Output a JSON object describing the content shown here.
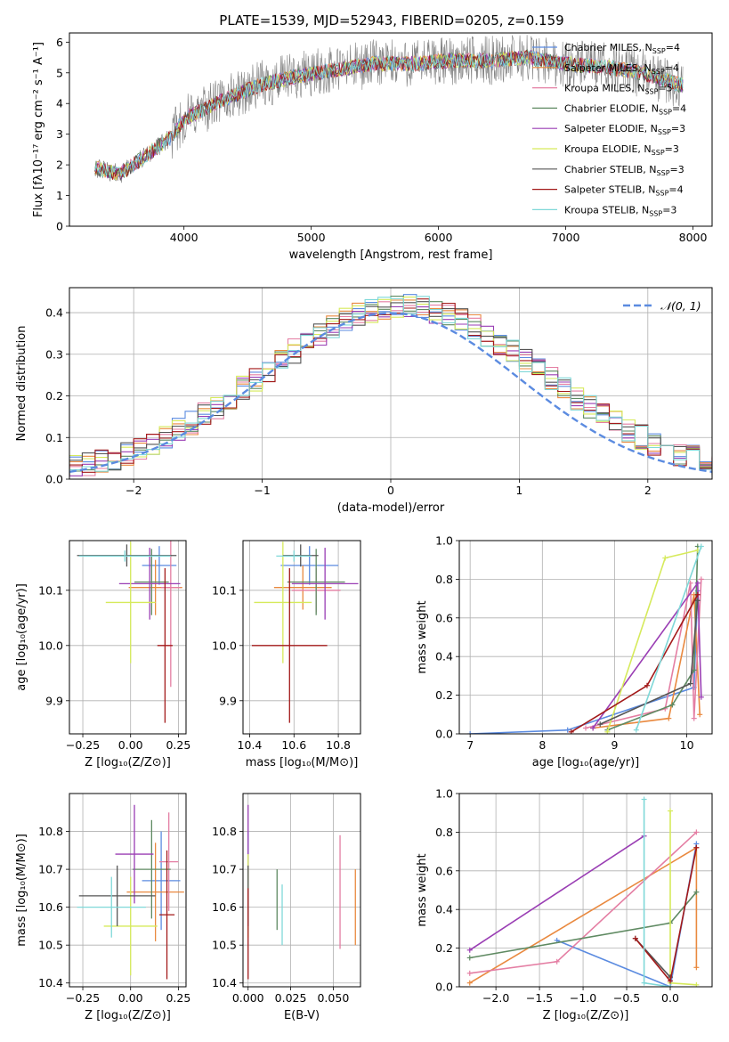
{
  "figure": {
    "title": "PLATE=1539, MJD=52943, FIBERID=0205, z=0.159"
  },
  "colors": {
    "Chabrier MILES": "#5b8be0",
    "Salpeter MILES": "#e9893f",
    "Kroupa MILES": "#e47ea3",
    "Chabrier ELODIE": "#5f8a62",
    "Salpeter ELODIE": "#9a3eb4",
    "Kroupa ELODIE": "#d6ea5b",
    "Chabrier STELIB": "#555555",
    "Salpeter STELIB": "#a31a1a",
    "Kroupa STELIB": "#7fd8d8",
    "data": "#808080",
    "normal": "#5b8be0"
  },
  "chart_data": [
    {
      "id": "spectrum",
      "type": "line",
      "xlabel": "wavelength [Angstrom, rest frame]",
      "ylabel": "Flux [fλ10⁻¹⁷ erg cm⁻² s⁻¹ A⁻¹]",
      "xlim": [
        3100,
        8150
      ],
      "ylim": [
        0,
        6.3
      ],
      "xticks": [
        4000,
        5000,
        6000,
        7000,
        8000
      ],
      "yticks": [
        0,
        1,
        2,
        3,
        4,
        5,
        6
      ],
      "continuum": {
        "x": [
          3300,
          3500,
          3700,
          3900,
          4000,
          4300,
          4600,
          4900,
          5200,
          5500,
          5800,
          6100,
          6400,
          6700,
          7000,
          7300,
          7600,
          7900
        ],
        "y": [
          1.9,
          1.7,
          2.3,
          2.9,
          3.5,
          4.1,
          4.6,
          4.9,
          5.1,
          5.3,
          5.3,
          5.4,
          5.4,
          5.5,
          5.3,
          5.2,
          5.0,
          4.6
        ]
      },
      "legend": [
        {
          "label": "Chabrier MILES, N",
          "sub": "SSP",
          "suffix": "=4"
        },
        {
          "label": "Salpeter MILES, N",
          "sub": "SSP",
          "suffix": "=4"
        },
        {
          "label": "Kroupa MILES, N",
          "sub": "SSP",
          "suffix": "=5"
        },
        {
          "label": "Chabrier ELODIE, N",
          "sub": "SSP",
          "suffix": "=4"
        },
        {
          "label": "Salpeter ELODIE, N",
          "sub": "SSP",
          "suffix": "=3"
        },
        {
          "label": "Kroupa ELODIE, N",
          "sub": "SSP",
          "suffix": "=3"
        },
        {
          "label": "Chabrier STELIB, N",
          "sub": "SSP",
          "suffix": "=3"
        },
        {
          "label": "Salpeter STELIB, N",
          "sub": "SSP",
          "suffix": "=4"
        },
        {
          "label": "Kroupa STELIB, N",
          "sub": "SSP",
          "suffix": "=3"
        }
      ],
      "legend_loc": "right"
    },
    {
      "id": "residuals",
      "type": "line",
      "xlabel": "(data-model)/error",
      "ylabel": "Normed distribution",
      "xlim": [
        -2.5,
        2.5
      ],
      "ylim": [
        0,
        0.46
      ],
      "xticks": [
        -2,
        -1,
        0,
        1,
        2
      ],
      "yticks": [
        0.0,
        0.1,
        0.2,
        0.3,
        0.4
      ],
      "normal_label": "𝒩(0, 1)",
      "legend_loc": "upper right"
    },
    {
      "id": "age_vs_Z",
      "type": "scatter",
      "xlabel": "Z [log₁₀(Z/Z⊙)]",
      "ylabel": "age  [log₁₀(age/yr)]",
      "xlim": [
        -0.32,
        0.29
      ],
      "ylim": [
        9.84,
        10.19
      ],
      "xticks": [
        -0.25,
        0.0,
        0.25
      ],
      "yticks": [
        9.9,
        10.0,
        10.1
      ],
      "points": [
        {
          "model": "Chabrier MILES",
          "x": 0.15,
          "y": 10.145,
          "xerr": 0.09,
          "yerr": 0.035
        },
        {
          "model": "Salpeter MILES",
          "x": 0.13,
          "y": 10.105,
          "xerr": 0.14,
          "yerr": 0.05
        },
        {
          "model": "Kroupa MILES",
          "x": 0.21,
          "y": 10.105,
          "xerr": 0.05,
          "yerr": 0.18
        },
        {
          "model": "Chabrier ELODIE",
          "x": 0.11,
          "y": 10.115,
          "xerr": 0.09,
          "yerr": 0.06
        },
        {
          "model": "Salpeter ELODIE",
          "x": 0.1,
          "y": 10.112,
          "xerr": 0.16,
          "yerr": 0.065
        },
        {
          "model": "Kroupa ELODIE",
          "x": 0.0,
          "y": 10.078,
          "xerr": 0.13,
          "yerr": 0.11
        },
        {
          "model": "Chabrier STELIB",
          "x": -0.02,
          "y": 10.163,
          "xerr": 0.26,
          "yerr": 0.02
        },
        {
          "model": "Salpeter STELIB",
          "x": 0.18,
          "y": 10.0,
          "xerr": 0.04,
          "yerr": 0.14
        },
        {
          "model": "Kroupa STELIB",
          "x": -0.03,
          "y": 10.162,
          "xerr": 0.24,
          "yerr": 0.01
        }
      ]
    },
    {
      "id": "age_vs_mass",
      "type": "scatter",
      "xlabel": "mass [log₁₀(M/M⊙)]",
      "ylabel": "",
      "xlim": [
        10.37,
        10.9
      ],
      "ylim": [
        9.84,
        10.19
      ],
      "xticks": [
        10.4,
        10.6,
        10.8
      ],
      "yticks": [
        9.9,
        10.0,
        10.1
      ],
      "points": [
        {
          "model": "Chabrier MILES",
          "x": 10.67,
          "y": 10.145,
          "xerr": 0.13,
          "yerr": 0.035
        },
        {
          "model": "Salpeter MILES",
          "x": 10.64,
          "y": 10.105,
          "xerr": 0.13,
          "yerr": 0.04
        },
        {
          "model": "Kroupa MILES",
          "x": 10.7,
          "y": 10.1,
          "xerr": 0.11,
          "yerr": 0.04
        },
        {
          "model": "Chabrier ELODIE",
          "x": 10.7,
          "y": 10.115,
          "xerr": 0.13,
          "yerr": 0.06
        },
        {
          "model": "Salpeter ELODIE",
          "x": 10.74,
          "y": 10.112,
          "xerr": 0.15,
          "yerr": 0.065
        },
        {
          "model": "Kroupa ELODIE",
          "x": 10.55,
          "y": 10.078,
          "xerr": 0.13,
          "yerr": 0.11
        },
        {
          "model": "Chabrier STELIB",
          "x": 10.63,
          "y": 10.163,
          "xerr": 0.08,
          "yerr": 0.02
        },
        {
          "model": "Salpeter STELIB",
          "x": 10.58,
          "y": 10.0,
          "xerr": 0.17,
          "yerr": 0.14
        },
        {
          "model": "Kroupa STELIB",
          "x": 10.6,
          "y": 10.162,
          "xerr": 0.08,
          "yerr": 0.01
        }
      ]
    },
    {
      "id": "massweight_vs_age",
      "type": "line",
      "xlabel": "age  [log₁₀(age/yr)]",
      "ylabel": "mass weight",
      "xlim": [
        6.85,
        10.35
      ],
      "ylim": [
        0,
        1.0
      ],
      "xticks": [
        7,
        8,
        9,
        10
      ],
      "yticks": [
        0.0,
        0.2,
        0.4,
        0.6,
        0.8,
        1.0
      ],
      "series": [
        {
          "model": "Chabrier MILES",
          "x": [
            7.0,
            8.35,
            10.1,
            10.15
          ],
          "y": [
            0.0,
            0.02,
            0.24,
            0.74
          ]
        },
        {
          "model": "Salpeter MILES",
          "x": [
            8.7,
            9.75,
            10.1,
            10.18
          ],
          "y": [
            0.03,
            0.08,
            0.72,
            0.1
          ]
        },
        {
          "model": "Kroupa MILES",
          "x": [
            8.6,
            9.7,
            10.05,
            10.1,
            10.2
          ],
          "y": [
            0.03,
            0.13,
            0.78,
            0.08,
            0.8
          ]
        },
        {
          "model": "Chabrier ELODIE",
          "x": [
            8.9,
            9.8,
            10.1,
            10.15
          ],
          "y": [
            0.02,
            0.15,
            0.33,
            0.97
          ]
        },
        {
          "model": "Salpeter ELODIE",
          "x": [
            8.7,
            10.15,
            10.2
          ],
          "y": [
            0.03,
            0.78,
            0.19
          ]
        },
        {
          "model": "Kroupa ELODIE",
          "x": [
            8.9,
            9.7,
            10.15
          ],
          "y": [
            0.01,
            0.91,
            0.95
          ]
        },
        {
          "model": "Chabrier STELIB",
          "x": [
            8.8,
            10.05,
            10.15
          ],
          "y": [
            0.05,
            0.26,
            0.69
          ]
        },
        {
          "model": "Salpeter STELIB",
          "x": [
            8.4,
            9.45,
            10.15
          ],
          "y": [
            0.01,
            0.25,
            0.72
          ]
        },
        {
          "model": "Kroupa STELIB",
          "x": [
            9.3,
            10.2
          ],
          "y": [
            0.02,
            0.97
          ]
        }
      ]
    },
    {
      "id": "mass_vs_Z",
      "type": "scatter",
      "xlabel": "Z [log₁₀(Z/Z⊙)]",
      "ylabel": "mass [log₁₀(M/M⊙)]",
      "xlim": [
        -0.32,
        0.29
      ],
      "ylim": [
        10.39,
        10.9
      ],
      "xticks": [
        -0.25,
        0.0,
        0.25
      ],
      "yticks": [
        10.4,
        10.5,
        10.6,
        10.7,
        10.8
      ],
      "points": [
        {
          "model": "Chabrier MILES",
          "x": 0.16,
          "y": 10.67,
          "xerr": 0.1,
          "yerr": 0.13
        },
        {
          "model": "Salpeter MILES",
          "x": 0.13,
          "y": 10.64,
          "xerr": 0.15,
          "yerr": 0.13
        },
        {
          "model": "Kroupa MILES",
          "x": 0.2,
          "y": 10.72,
          "xerr": 0.05,
          "yerr": 0.13
        },
        {
          "model": "Chabrier ELODIE",
          "x": 0.11,
          "y": 10.7,
          "xerr": 0.1,
          "yerr": 0.13
        },
        {
          "model": "Salpeter ELODIE",
          "x": 0.02,
          "y": 10.74,
          "xerr": 0.1,
          "yerr": 0.13
        },
        {
          "model": "Kroupa ELODIE",
          "x": 0.0,
          "y": 10.55,
          "xerr": 0.14,
          "yerr": 0.13
        },
        {
          "model": "Chabrier STELIB",
          "x": -0.07,
          "y": 10.63,
          "xerr": 0.2,
          "yerr": 0.08
        },
        {
          "model": "Salpeter STELIB",
          "x": 0.19,
          "y": 10.58,
          "xerr": 0.04,
          "yerr": 0.17
        },
        {
          "model": "Kroupa STELIB",
          "x": -0.1,
          "y": 10.6,
          "xerr": 0.18,
          "yerr": 0.08
        }
      ]
    },
    {
      "id": "mass_vs_EBV",
      "type": "scatter",
      "xlabel": "E(B-V)",
      "ylabel": "",
      "xlim": [
        -0.003,
        0.066
      ],
      "ylim": [
        10.39,
        10.9
      ],
      "xticks": [
        0.0,
        0.025,
        0.05
      ],
      "yticks": [
        10.4,
        10.5,
        10.6,
        10.7,
        10.8
      ],
      "points": [
        {
          "model": "Chabrier MILES",
          "x": 0.0,
          "y": 10.67,
          "xerr": 0.0,
          "yerr": 0.13
        },
        {
          "model": "Salpeter MILES",
          "x": 0.063,
          "y": 10.6,
          "xerr": 0.0,
          "yerr": 0.1
        },
        {
          "model": "Kroupa MILES",
          "x": 0.054,
          "y": 10.64,
          "xerr": 0.0,
          "yerr": 0.15
        },
        {
          "model": "Chabrier ELODIE",
          "x": 0.017,
          "y": 10.62,
          "xerr": 0.0,
          "yerr": 0.08
        },
        {
          "model": "Salpeter ELODIE",
          "x": 0.0,
          "y": 10.74,
          "xerr": 0.0,
          "yerr": 0.13
        },
        {
          "model": "Kroupa ELODIE",
          "x": 0.0,
          "y": 10.63,
          "xerr": 0.0,
          "yerr": 0.11
        },
        {
          "model": "Chabrier STELIB",
          "x": 0.0,
          "y": 10.63,
          "xerr": 0.0,
          "yerr": 0.08
        },
        {
          "model": "Salpeter STELIB",
          "x": 0.0,
          "y": 10.53,
          "xerr": 0.0,
          "yerr": 0.12
        },
        {
          "model": "Kroupa STELIB",
          "x": 0.02,
          "y": 10.58,
          "xerr": 0.0,
          "yerr": 0.08
        }
      ]
    },
    {
      "id": "massweight_vs_Z",
      "type": "line",
      "xlabel": "Z [log₁₀(Z/Z⊙)]",
      "ylabel": "mass weight",
      "xlim": [
        -2.42,
        0.48
      ],
      "ylim": [
        0,
        1.0
      ],
      "xticks": [
        -2.0,
        -1.5,
        -1.0,
        -0.5,
        0.0
      ],
      "yticks": [
        0.0,
        0.2,
        0.4,
        0.6,
        0.8,
        1.0
      ],
      "series": [
        {
          "model": "Chabrier MILES",
          "x": [
            -1.3,
            0.0,
            0.3
          ],
          "y": [
            0.24,
            0.0,
            0.74
          ]
        },
        {
          "model": "Salpeter MILES",
          "x": [
            -2.3,
            0.3,
            0.3
          ],
          "y": [
            0.02,
            0.72,
            0.1
          ]
        },
        {
          "model": "Kroupa MILES",
          "x": [
            -2.3,
            -1.3,
            0.3
          ],
          "y": [
            0.07,
            0.13,
            0.8
          ]
        },
        {
          "model": "Chabrier ELODIE",
          "x": [
            -2.3,
            0.0,
            0.3
          ],
          "y": [
            0.15,
            0.33,
            0.49
          ]
        },
        {
          "model": "Salpeter ELODIE",
          "x": [
            -2.3,
            -0.3
          ],
          "y": [
            0.19,
            0.78
          ]
        },
        {
          "model": "Kroupa ELODIE",
          "x": [
            0.0,
            0.0,
            0.3
          ],
          "y": [
            0.91,
            0.02,
            0.01
          ]
        },
        {
          "model": "Chabrier STELIB",
          "x": [
            -0.4,
            0.0
          ],
          "y": [
            0.25,
            0.05
          ]
        },
        {
          "model": "Salpeter STELIB",
          "x": [
            -0.4,
            0.0,
            0.3
          ],
          "y": [
            0.25,
            0.03,
            0.72
          ]
        },
        {
          "model": "Kroupa STELIB",
          "x": [
            -0.3,
            -0.3,
            0.0
          ],
          "y": [
            0.97,
            0.02,
            0.0
          ]
        }
      ]
    }
  ]
}
